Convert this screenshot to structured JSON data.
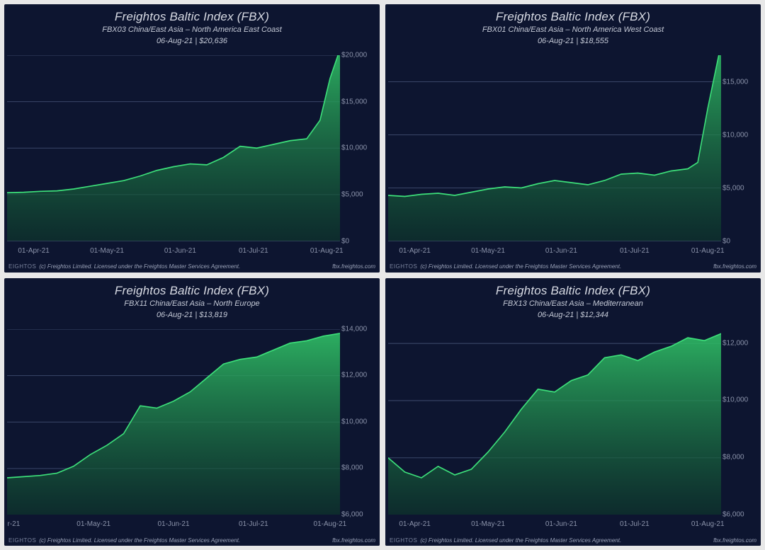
{
  "global": {
    "brand": "EIGHTOS",
    "license": "(c) Freightos Limited. Licensed under the Freightos Master Services Agreement.",
    "site": "fbx.freightos.com",
    "background_color": "#0d1530",
    "grid_color": "#3a4668",
    "text_color": "#d8dbe4",
    "axis_label_color": "#8b93aa",
    "series_line_color": "#3de07a",
    "series_fill_top": "#2fbf66",
    "series_fill_bottom": "#0d3a2a",
    "title_fontsize": 17,
    "subtitle_fontsize": 11,
    "axis_fontsize": 10,
    "line_width": 1.6
  },
  "panels": [
    {
      "title": "Freightos Baltic Index (FBX)",
      "subtitle": "FBX03 China/East Asia – North America East Coast",
      "date_label": "06-Aug-21 | $20,636",
      "type": "area",
      "x_ticks": [
        {
          "t": 0.08,
          "label": "01-Apr-21"
        },
        {
          "t": 0.3,
          "label": "01-May-21"
        },
        {
          "t": 0.52,
          "label": "01-Jun-21"
        },
        {
          "t": 0.74,
          "label": "01-Jul-21"
        },
        {
          "t": 0.96,
          "label": "01-Aug-21"
        }
      ],
      "y_min": 0,
      "y_max": 20000,
      "y_ticks": [
        {
          "v": 0,
          "label": "$0"
        },
        {
          "v": 5000,
          "label": "$5,000"
        },
        {
          "v": 10000,
          "label": "$10,000"
        },
        {
          "v": 15000,
          "label": "$15,000"
        },
        {
          "v": 20000,
          "label": "$20,000"
        }
      ],
      "series": [
        {
          "t": 0.0,
          "v": 5200
        },
        {
          "t": 0.05,
          "v": 5250
        },
        {
          "t": 0.1,
          "v": 5350
        },
        {
          "t": 0.15,
          "v": 5400
        },
        {
          "t": 0.2,
          "v": 5600
        },
        {
          "t": 0.25,
          "v": 5900
        },
        {
          "t": 0.3,
          "v": 6200
        },
        {
          "t": 0.35,
          "v": 6500
        },
        {
          "t": 0.4,
          "v": 7000
        },
        {
          "t": 0.45,
          "v": 7600
        },
        {
          "t": 0.5,
          "v": 8000
        },
        {
          "t": 0.55,
          "v": 8300
        },
        {
          "t": 0.6,
          "v": 8200
        },
        {
          "t": 0.65,
          "v": 9000
        },
        {
          "t": 0.7,
          "v": 10200
        },
        {
          "t": 0.75,
          "v": 10000
        },
        {
          "t": 0.8,
          "v": 10400
        },
        {
          "t": 0.85,
          "v": 10800
        },
        {
          "t": 0.9,
          "v": 11000
        },
        {
          "t": 0.94,
          "v": 13000
        },
        {
          "t": 0.97,
          "v": 17500
        },
        {
          "t": 1.0,
          "v": 20636
        }
      ]
    },
    {
      "title": "Freightos Baltic Index (FBX)",
      "subtitle": "FBX01 China/East Asia – North America West Coast",
      "date_label": "06-Aug-21 | $18,555",
      "type": "area",
      "x_ticks": [
        {
          "t": 0.08,
          "label": "01-Apr-21"
        },
        {
          "t": 0.3,
          "label": "01-May-21"
        },
        {
          "t": 0.52,
          "label": "01-Jun-21"
        },
        {
          "t": 0.74,
          "label": "01-Jul-21"
        },
        {
          "t": 0.96,
          "label": "01-Aug-21"
        }
      ],
      "y_min": 0,
      "y_max": 17500,
      "y_ticks": [
        {
          "v": 0,
          "label": "$0"
        },
        {
          "v": 5000,
          "label": "$5,000"
        },
        {
          "v": 10000,
          "label": "$10,000"
        },
        {
          "v": 15000,
          "label": "$15,000"
        }
      ],
      "series": [
        {
          "t": 0.0,
          "v": 4300
        },
        {
          "t": 0.05,
          "v": 4200
        },
        {
          "t": 0.1,
          "v": 4400
        },
        {
          "t": 0.15,
          "v": 4500
        },
        {
          "t": 0.2,
          "v": 4300
        },
        {
          "t": 0.25,
          "v": 4600
        },
        {
          "t": 0.3,
          "v": 4900
        },
        {
          "t": 0.35,
          "v": 5100
        },
        {
          "t": 0.4,
          "v": 5000
        },
        {
          "t": 0.45,
          "v": 5400
        },
        {
          "t": 0.5,
          "v": 5700
        },
        {
          "t": 0.55,
          "v": 5500
        },
        {
          "t": 0.6,
          "v": 5300
        },
        {
          "t": 0.65,
          "v": 5700
        },
        {
          "t": 0.7,
          "v": 6300
        },
        {
          "t": 0.75,
          "v": 6400
        },
        {
          "t": 0.8,
          "v": 6200
        },
        {
          "t": 0.85,
          "v": 6600
        },
        {
          "t": 0.9,
          "v": 6800
        },
        {
          "t": 0.93,
          "v": 7400
        },
        {
          "t": 0.96,
          "v": 12500
        },
        {
          "t": 1.0,
          "v": 18555
        }
      ]
    },
    {
      "title": "Freightos Baltic Index (FBX)",
      "subtitle": "FBX11 China/East Asia – North Europe",
      "date_label": "06-Aug-21 | $13,819",
      "type": "area",
      "x_ticks": [
        {
          "t": 0.02,
          "label": "r-21"
        },
        {
          "t": 0.26,
          "label": "01-May-21"
        },
        {
          "t": 0.5,
          "label": "01-Jun-21"
        },
        {
          "t": 0.74,
          "label": "01-Jul-21"
        },
        {
          "t": 0.97,
          "label": "01-Aug-21"
        }
      ],
      "y_min": 6000,
      "y_max": 14000,
      "y_ticks": [
        {
          "v": 6000,
          "label": "$6,000"
        },
        {
          "v": 8000,
          "label": "$8,000"
        },
        {
          "v": 10000,
          "label": "$10,000"
        },
        {
          "v": 12000,
          "label": "$12,000"
        },
        {
          "v": 14000,
          "label": "$14,000"
        }
      ],
      "series": [
        {
          "t": 0.0,
          "v": 7600
        },
        {
          "t": 0.05,
          "v": 7650
        },
        {
          "t": 0.1,
          "v": 7700
        },
        {
          "t": 0.15,
          "v": 7800
        },
        {
          "t": 0.2,
          "v": 8100
        },
        {
          "t": 0.25,
          "v": 8600
        },
        {
          "t": 0.3,
          "v": 9000
        },
        {
          "t": 0.35,
          "v": 9500
        },
        {
          "t": 0.4,
          "v": 10700
        },
        {
          "t": 0.45,
          "v": 10600
        },
        {
          "t": 0.5,
          "v": 10900
        },
        {
          "t": 0.55,
          "v": 11300
        },
        {
          "t": 0.6,
          "v": 11900
        },
        {
          "t": 0.65,
          "v": 12500
        },
        {
          "t": 0.7,
          "v": 12700
        },
        {
          "t": 0.75,
          "v": 12800
        },
        {
          "t": 0.8,
          "v": 13100
        },
        {
          "t": 0.85,
          "v": 13400
        },
        {
          "t": 0.9,
          "v": 13500
        },
        {
          "t": 0.95,
          "v": 13700
        },
        {
          "t": 1.0,
          "v": 13819
        }
      ]
    },
    {
      "title": "Freightos Baltic Index (FBX)",
      "subtitle": "FBX13 China/East Asia – Mediterranean",
      "date_label": "06-Aug-21 | $12,344",
      "type": "area",
      "x_ticks": [
        {
          "t": 0.08,
          "label": "01-Apr-21"
        },
        {
          "t": 0.3,
          "label": "01-May-21"
        },
        {
          "t": 0.52,
          "label": "01-Jun-21"
        },
        {
          "t": 0.74,
          "label": "01-Jul-21"
        },
        {
          "t": 0.96,
          "label": "01-Aug-21"
        }
      ],
      "y_min": 6000,
      "y_max": 12500,
      "y_ticks": [
        {
          "v": 6000,
          "label": "$6,000"
        },
        {
          "v": 8000,
          "label": "$8,000"
        },
        {
          "v": 10000,
          "label": "$10,000"
        },
        {
          "v": 12000,
          "label": "$12,000"
        }
      ],
      "series": [
        {
          "t": 0.0,
          "v": 8000
        },
        {
          "t": 0.05,
          "v": 7500
        },
        {
          "t": 0.1,
          "v": 7300
        },
        {
          "t": 0.15,
          "v": 7700
        },
        {
          "t": 0.2,
          "v": 7400
        },
        {
          "t": 0.25,
          "v": 7600
        },
        {
          "t": 0.3,
          "v": 8200
        },
        {
          "t": 0.35,
          "v": 8900
        },
        {
          "t": 0.4,
          "v": 9700
        },
        {
          "t": 0.45,
          "v": 10400
        },
        {
          "t": 0.5,
          "v": 10300
        },
        {
          "t": 0.55,
          "v": 10700
        },
        {
          "t": 0.6,
          "v": 10900
        },
        {
          "t": 0.65,
          "v": 11500
        },
        {
          "t": 0.7,
          "v": 11600
        },
        {
          "t": 0.75,
          "v": 11400
        },
        {
          "t": 0.8,
          "v": 11700
        },
        {
          "t": 0.85,
          "v": 11900
        },
        {
          "t": 0.9,
          "v": 12200
        },
        {
          "t": 0.95,
          "v": 12100
        },
        {
          "t": 1.0,
          "v": 12344
        }
      ]
    }
  ]
}
